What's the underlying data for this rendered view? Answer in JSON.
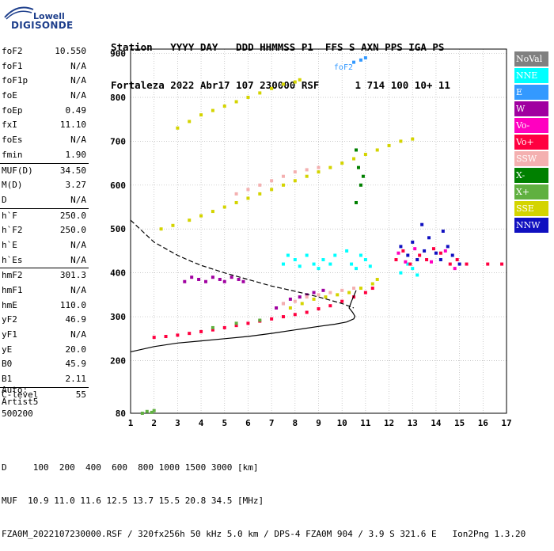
{
  "logo": {
    "line1": "Lowell",
    "line2": "DIGISONDE"
  },
  "header": {
    "labels_line": "Station   YYYY DAY   DDD HHMMSS P1  FFS S AXN PPS IGA PS",
    "values_line": "Fortaleza 2022 Abr17 107 230000 RSF      1 714 100 10+ 11"
  },
  "params_groups": [
    [
      {
        "name": "foF2",
        "value": "10.550"
      },
      {
        "name": "foF1",
        "value": "N/A"
      },
      {
        "name": "foF1p",
        "value": "N/A"
      },
      {
        "name": "foE",
        "value": "N/A"
      },
      {
        "name": "foEp",
        "value": "0.49"
      },
      {
        "name": "fxI",
        "value": "11.10"
      },
      {
        "name": "foEs",
        "value": "N/A"
      },
      {
        "name": "fmin",
        "value": "1.90"
      }
    ],
    [
      {
        "name": "MUF(D)",
        "value": "34.50"
      },
      {
        "name": "M(D)",
        "value": "3.27"
      },
      {
        "name": "D",
        "value": "N/A"
      }
    ],
    [
      {
        "name": "h`F",
        "value": "250.0"
      },
      {
        "name": "h`F2",
        "value": "250.0"
      },
      {
        "name": "h`E",
        "value": "N/A"
      },
      {
        "name": "h`Es",
        "value": "N/A"
      }
    ],
    [
      {
        "name": "hmF2",
        "value": "301.3"
      },
      {
        "name": "hmF1",
        "value": "N/A"
      },
      {
        "name": "hmE",
        "value": "110.0"
      },
      {
        "name": "yF2",
        "value": "46.9"
      },
      {
        "name": "yF1",
        "value": "N/A"
      },
      {
        "name": "yE",
        "value": "20.0"
      },
      {
        "name": "B0",
        "value": "45.9"
      },
      {
        "name": "B1",
        "value": "2.11"
      }
    ],
    [
      {
        "name": "C-level",
        "value": "55"
      }
    ]
  ],
  "auto": {
    "line1": "Auto:",
    "line2": "Artist5",
    "line3": "500200"
  },
  "legend": [
    {
      "label": "NoVal",
      "color": "#808080"
    },
    {
      "label": "NNE",
      "color": "#00ffff"
    },
    {
      "label": "E",
      "color": "#3399ff"
    },
    {
      "label": "W",
      "color": "#a000a0"
    },
    {
      "label": "Vo-",
      "color": "#ff00c0"
    },
    {
      "label": "Vo+",
      "color": "#ff0040"
    },
    {
      "label": "SSW",
      "color": "#f4b0b0"
    },
    {
      "label": "X-",
      "color": "#008000"
    },
    {
      "label": "X+",
      "color": "#60b040"
    },
    {
      "label": "SSE",
      "color": "#d4d400"
    },
    {
      "label": "NNW",
      "color": "#1010c0"
    }
  ],
  "footer": {
    "line1": "D     100  200  400  600  800 1000 1500 3000 [km]",
    "line2": "MUF  10.9 11.0 11.6 12.5 13.7 15.5 20.8 34.5 [MHz]",
    "line3": "FZA0M_2022107230000.RSF / 320fx256h 50 kHz 5.0 km / DPS-4 FZA0M 904 / 3.9 S 321.6 E   Ion2Png 1.3.20"
  },
  "chart_data": {
    "type": "scatter",
    "x_ticks": [
      "1",
      "2",
      "3",
      "4",
      "5",
      "6",
      "7",
      "8",
      "9",
      "10",
      "11",
      "12",
      "13",
      "14",
      "15",
      "16",
      "17"
    ],
    "y_ticks": [
      "80",
      "200",
      "300",
      "400",
      "500",
      "600",
      "700",
      "800",
      "900"
    ],
    "xlim": [
      1,
      17
    ],
    "ylim": [
      80,
      910
    ],
    "grid": true,
    "legend_position": "right",
    "annotations": [
      {
        "text": "foF2",
        "x": 10.6,
        "y": 870
      }
    ],
    "series": [
      {
        "color": "#d4d400",
        "points": [
          [
            3.0,
            730
          ],
          [
            3.5,
            745
          ],
          [
            4.0,
            760
          ],
          [
            4.5,
            770
          ],
          [
            5.0,
            780
          ],
          [
            5.5,
            790
          ],
          [
            6.0,
            800
          ],
          [
            6.5,
            810
          ],
          [
            7.0,
            820
          ],
          [
            7.5,
            830
          ],
          [
            8.0,
            835
          ],
          [
            8.2,
            840
          ]
        ]
      },
      {
        "color": "#d4d400",
        "points": [
          [
            2.3,
            500
          ],
          [
            2.8,
            508
          ],
          [
            3.5,
            520
          ],
          [
            4.0,
            530
          ],
          [
            4.5,
            540
          ],
          [
            5.0,
            550
          ],
          [
            5.5,
            560
          ],
          [
            6.0,
            570
          ],
          [
            6.5,
            580
          ],
          [
            7.0,
            590
          ],
          [
            7.5,
            600
          ],
          [
            8.0,
            610
          ],
          [
            8.5,
            620
          ],
          [
            9.0,
            630
          ],
          [
            9.5,
            640
          ],
          [
            10.0,
            650
          ],
          [
            10.5,
            660
          ],
          [
            11.0,
            670
          ],
          [
            11.5,
            680
          ],
          [
            12.0,
            690
          ],
          [
            12.5,
            700
          ],
          [
            13.0,
            705
          ]
        ]
      },
      {
        "color": "#f4b0b0",
        "points": [
          [
            5.5,
            580
          ],
          [
            6.0,
            590
          ],
          [
            6.5,
            600
          ],
          [
            7.0,
            610
          ],
          [
            7.5,
            620
          ],
          [
            8.0,
            630
          ],
          [
            8.5,
            635
          ],
          [
            9.0,
            640
          ]
        ]
      },
      {
        "color": "#3399ff",
        "points": [
          [
            10.5,
            880
          ],
          [
            10.8,
            885
          ],
          [
            11.0,
            890
          ]
        ]
      },
      {
        "color": "#00ffff",
        "points": [
          [
            7.5,
            420
          ],
          [
            7.7,
            440
          ],
          [
            8.0,
            430
          ],
          [
            8.2,
            415
          ],
          [
            8.5,
            440
          ],
          [
            8.8,
            420
          ],
          [
            9.0,
            410
          ],
          [
            9.2,
            430
          ],
          [
            9.5,
            420
          ],
          [
            9.7,
            440
          ],
          [
            10.2,
            450
          ],
          [
            10.4,
            420
          ],
          [
            10.6,
            410
          ],
          [
            10.8,
            440
          ],
          [
            11.0,
            430
          ],
          [
            11.2,
            415
          ],
          [
            12.5,
            400
          ],
          [
            13.0,
            410
          ],
          [
            12.8,
            420
          ],
          [
            13.2,
            395
          ]
        ]
      },
      {
        "color": "#a000a0",
        "points": [
          [
            3.3,
            380
          ],
          [
            3.6,
            390
          ],
          [
            3.9,
            385
          ],
          [
            4.2,
            380
          ],
          [
            4.5,
            390
          ],
          [
            4.8,
            385
          ],
          [
            5.0,
            380
          ],
          [
            5.3,
            390
          ],
          [
            5.6,
            385
          ],
          [
            5.8,
            380
          ],
          [
            7.2,
            320
          ],
          [
            7.5,
            330
          ],
          [
            7.8,
            340
          ],
          [
            8.2,
            345
          ],
          [
            8.5,
            350
          ],
          [
            8.8,
            355
          ],
          [
            9.2,
            360
          ]
        ]
      },
      {
        "color": "#ff0040",
        "points": [
          [
            2.0,
            253
          ],
          [
            2.5,
            255
          ],
          [
            3.0,
            258
          ],
          [
            3.5,
            262
          ],
          [
            4.0,
            266
          ],
          [
            4.5,
            270
          ],
          [
            5.0,
            275
          ],
          [
            5.5,
            280
          ],
          [
            6.0,
            285
          ],
          [
            6.5,
            290
          ],
          [
            7.0,
            295
          ],
          [
            7.5,
            300
          ],
          [
            8.0,
            305
          ],
          [
            8.5,
            310
          ],
          [
            9.0,
            318
          ],
          [
            9.5,
            325
          ],
          [
            10.0,
            335
          ],
          [
            10.5,
            345
          ],
          [
            11.0,
            355
          ],
          [
            11.3,
            365
          ]
        ]
      },
      {
        "color": "#f4b0b0",
        "points": [
          [
            7.5,
            330
          ],
          [
            8.0,
            335
          ],
          [
            8.5,
            345
          ],
          [
            9.0,
            350
          ],
          [
            9.5,
            355
          ],
          [
            10.0,
            360
          ],
          [
            10.5,
            365
          ]
        ]
      },
      {
        "color": "#d4d400",
        "points": [
          [
            7.8,
            320
          ],
          [
            8.3,
            330
          ],
          [
            8.8,
            340
          ],
          [
            9.3,
            345
          ],
          [
            9.8,
            350
          ],
          [
            10.3,
            355
          ],
          [
            10.8,
            365
          ],
          [
            11.3,
            375
          ],
          [
            11.5,
            385
          ]
        ]
      },
      {
        "color": "#60b040",
        "points": [
          [
            1.5,
            80
          ],
          [
            1.7,
            84
          ],
          [
            1.9,
            82
          ],
          [
            2.0,
            86
          ],
          [
            4.5,
            275
          ],
          [
            5.5,
            285
          ],
          [
            6.5,
            292
          ]
        ]
      },
      {
        "color": "#1010c0",
        "points": [
          [
            12.5,
            460
          ],
          [
            12.8,
            440
          ],
          [
            13.0,
            470
          ],
          [
            13.2,
            430
          ],
          [
            13.5,
            450
          ],
          [
            13.7,
            480
          ],
          [
            14.0,
            445
          ],
          [
            14.2,
            430
          ],
          [
            14.5,
            460
          ],
          [
            14.7,
            440
          ],
          [
            15.0,
            420
          ],
          [
            13.4,
            510
          ],
          [
            14.3,
            495
          ]
        ]
      },
      {
        "color": "#ff0040",
        "points": [
          [
            12.3,
            430
          ],
          [
            12.6,
            450
          ],
          [
            12.9,
            420
          ],
          [
            13.3,
            440
          ],
          [
            13.6,
            430
          ],
          [
            13.9,
            455
          ],
          [
            14.2,
            445
          ],
          [
            14.6,
            420
          ],
          [
            14.9,
            430
          ],
          [
            15.3,
            420
          ],
          [
            16.2,
            420
          ],
          [
            16.8,
            420
          ]
        ]
      },
      {
        "color": "#ff00c0",
        "points": [
          [
            12.4,
            445
          ],
          [
            12.7,
            425
          ],
          [
            13.1,
            455
          ],
          [
            13.8,
            425
          ],
          [
            14.4,
            450
          ],
          [
            14.8,
            410
          ]
        ]
      },
      {
        "color": "#008000",
        "points": [
          [
            10.6,
            560
          ],
          [
            10.7,
            640
          ],
          [
            10.8,
            600
          ],
          [
            10.9,
            620
          ],
          [
            10.6,
            680
          ]
        ]
      }
    ],
    "curves": [
      {
        "style": "solid",
        "points": [
          [
            1.0,
            220
          ],
          [
            2.0,
            232
          ],
          [
            3.0,
            240
          ],
          [
            4.0,
            245
          ],
          [
            5.0,
            250
          ],
          [
            6.0,
            255
          ],
          [
            7.0,
            262
          ],
          [
            8.0,
            270
          ],
          [
            9.0,
            278
          ],
          [
            9.7,
            283
          ],
          [
            10.2,
            288
          ],
          [
            10.5,
            295
          ],
          [
            10.55,
            301
          ],
          [
            10.45,
            310
          ],
          [
            10.3,
            320
          ],
          [
            10.4,
            335
          ],
          [
            10.6,
            360
          ]
        ]
      },
      {
        "style": "dashed",
        "points": [
          [
            1.0,
            520
          ],
          [
            1.5,
            495
          ],
          [
            2.0,
            470
          ],
          [
            2.5,
            455
          ],
          [
            3.0,
            440
          ],
          [
            3.5,
            428
          ],
          [
            4.0,
            417
          ],
          [
            5.0,
            400
          ],
          [
            6.0,
            385
          ],
          [
            7.0,
            370
          ],
          [
            8.0,
            358
          ],
          [
            9.0,
            345
          ],
          [
            10.0,
            330
          ],
          [
            10.5,
            320
          ]
        ]
      }
    ]
  }
}
